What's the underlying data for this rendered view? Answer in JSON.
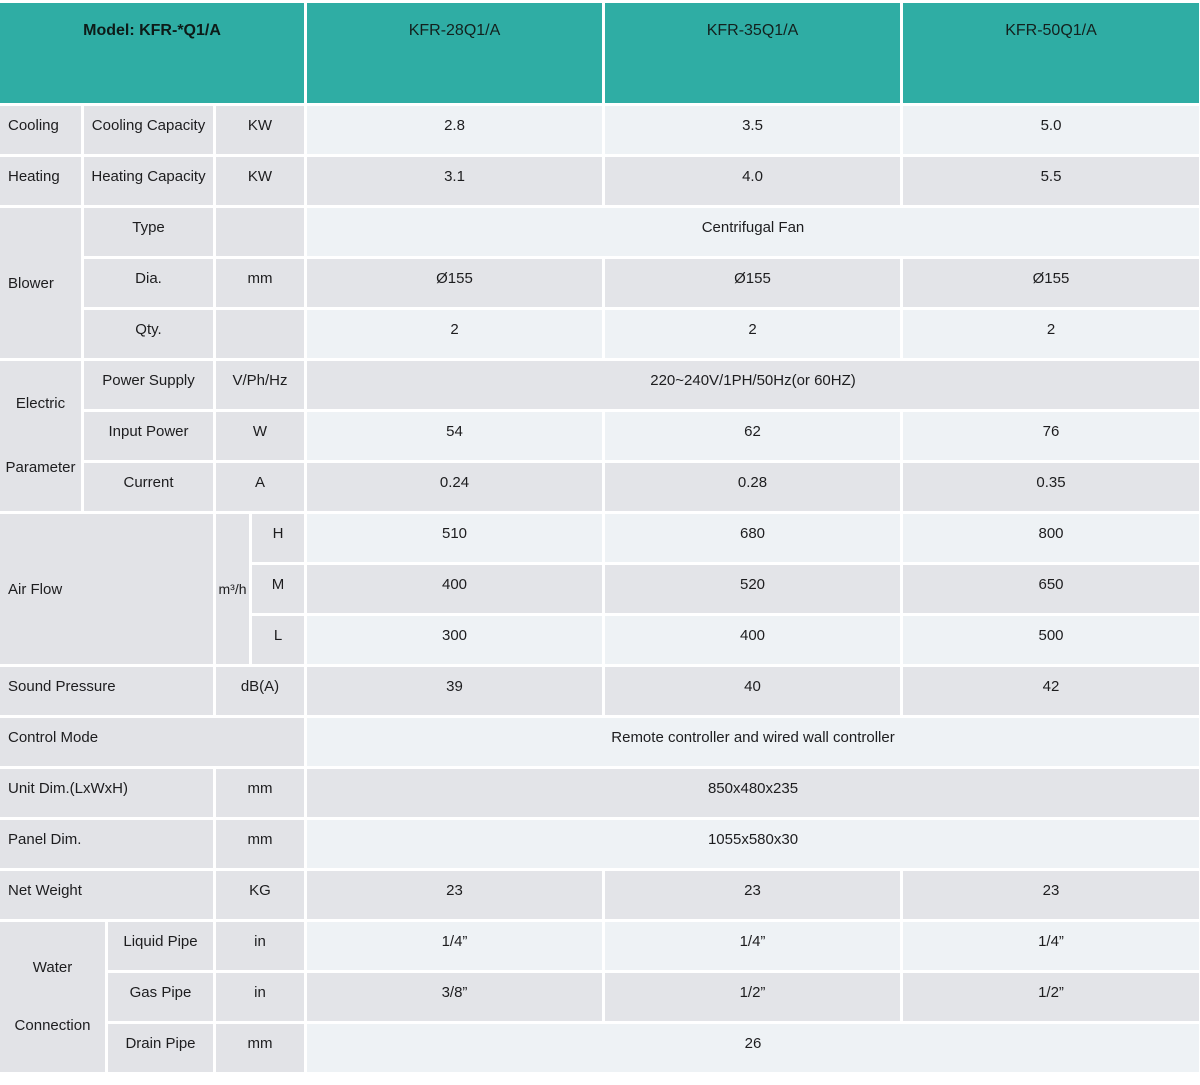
{
  "header": {
    "model_label": "Model: KFR-*Q1/A",
    "columns": [
      "KFR-28Q1/A",
      "KFR-35Q1/A",
      "KFR-50Q1/A"
    ]
  },
  "cooling": {
    "label": "Cooling",
    "param": "Cooling Capacity",
    "unit": "KW",
    "values": [
      "2.8",
      "3.5",
      "5.0"
    ]
  },
  "heating": {
    "label": "Heating",
    "param": "Heating Capacity",
    "unit": "KW",
    "values": [
      "3.1",
      "4.0",
      "5.5"
    ]
  },
  "blower": {
    "label": "Blower",
    "type": {
      "param": "Type",
      "unit": "",
      "value": "Centrifugal Fan"
    },
    "dia": {
      "param": "Dia.",
      "unit": "mm",
      "values": [
        "Ø155",
        "Ø155",
        "Ø155"
      ]
    },
    "qty": {
      "param": "Qty.",
      "unit": "",
      "values": [
        "2",
        "2",
        "2"
      ]
    }
  },
  "electric": {
    "label": "Electric Parameter",
    "power_supply": {
      "param": "Power Supply",
      "unit": "V/Ph/Hz",
      "value": "220~240V/1PH/50Hz(or 60HZ)"
    },
    "input_power": {
      "param": "Input Power",
      "unit": "W",
      "values": [
        "54",
        "62",
        "76"
      ]
    },
    "current": {
      "param": "Current",
      "unit": "A",
      "values": [
        "0.24",
        "0.28",
        "0.35"
      ]
    }
  },
  "air_flow": {
    "label": "Air Flow",
    "unit": "m³/h",
    "high": {
      "level": "H",
      "values": [
        "510",
        "680",
        "800"
      ]
    },
    "mid": {
      "level": "M",
      "values": [
        "400",
        "520",
        "650"
      ]
    },
    "low": {
      "level": "L",
      "values": [
        "300",
        "400",
        "500"
      ]
    }
  },
  "sound_pressure": {
    "label": "Sound Pressure",
    "unit": "dB(A)",
    "values": [
      "39",
      "40",
      "42"
    ]
  },
  "control_mode": {
    "label": "Control Mode",
    "value": "Remote controller and wired wall controller"
  },
  "unit_dim": {
    "label": "Unit Dim.(LxWxH)",
    "unit": "mm",
    "value": "850x480x235"
  },
  "panel_dim": {
    "label": "Panel Dim.",
    "unit": "mm",
    "value": "1055x580x30"
  },
  "net_weight": {
    "label": "Net Weight",
    "unit": "KG",
    "values": [
      "23",
      "23",
      "23"
    ]
  },
  "water": {
    "label": "Water Connection",
    "liquid": {
      "param": "Liquid Pipe",
      "unit": "in",
      "values": [
        "1/4”",
        "1/4”",
        "1/4”"
      ]
    },
    "gas": {
      "param": "Gas Pipe",
      "unit": "in",
      "values": [
        "3/8”",
        "1/2”",
        "1/2”"
      ]
    },
    "drain": {
      "param": "Drain Pipe",
      "unit": "mm",
      "value": "26"
    }
  },
  "colors": {
    "header_teal": "#2fada4",
    "row_light": "#eef2f5",
    "row_dark": "#e3e4e8",
    "label_gray": "#e2e3e7",
    "grid_gap": "#ffffff",
    "text": "#1d1d1f"
  }
}
